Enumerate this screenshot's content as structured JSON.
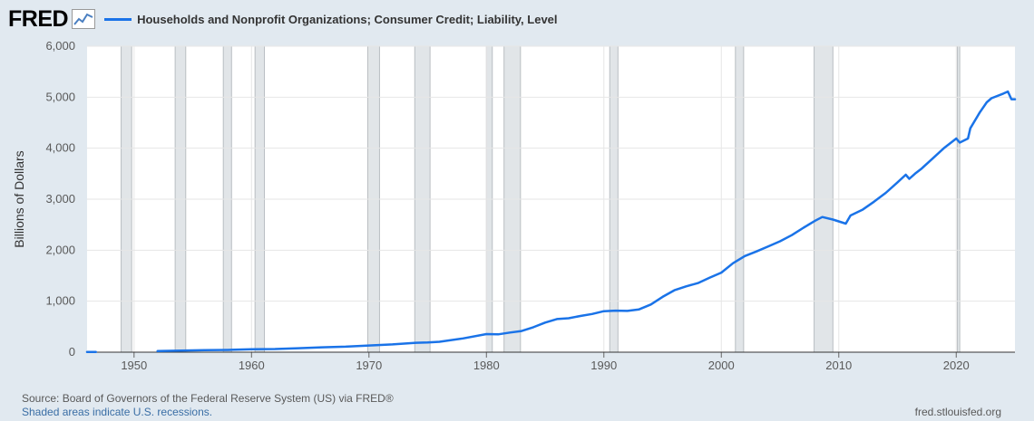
{
  "header": {
    "logo_text": "FRED",
    "logo_icon": "line-chart-icon"
  },
  "colors": {
    "background": "#e1e9f0",
    "plot_background": "#ffffff",
    "series_line": "#1a73e8",
    "recession_shade": "#e1e5e8"
  },
  "footer": {
    "source": "Source: Board of Governors of the Federal Reserve System (US) via FRED®",
    "recession_note": "Shaded areas indicate U.S. recessions.",
    "site": "fred.stlouisfed.org"
  },
  "chart_data": {
    "type": "line",
    "title": "",
    "xlabel": "",
    "ylabel": "Billions of Dollars",
    "xlim": [
      1946,
      2025
    ],
    "ylim": [
      0,
      6000
    ],
    "x_ticks": [
      1950,
      1960,
      1970,
      1980,
      1990,
      2000,
      2010,
      2020
    ],
    "x_tick_labels": [
      "1950",
      "1960",
      "1970",
      "1980",
      "1990",
      "2000",
      "2010",
      "2020"
    ],
    "y_ticks": [
      0,
      1000,
      2000,
      3000,
      4000,
      5000,
      6000
    ],
    "y_tick_labels": [
      "0",
      "1,000",
      "2,000",
      "3,000",
      "4,000",
      "5,000",
      "6,000"
    ],
    "grid": true,
    "legend": "top-left",
    "recessions": [
      [
        1948.9,
        1949.8
      ],
      [
        1953.5,
        1954.4
      ],
      [
        1957.6,
        1958.3
      ],
      [
        1960.3,
        1961.1
      ],
      [
        1969.9,
        1970.9
      ],
      [
        1973.9,
        1975.2
      ],
      [
        1980.0,
        1980.5
      ],
      [
        1981.5,
        1982.9
      ],
      [
        1990.5,
        1991.2
      ],
      [
        2001.2,
        2001.9
      ],
      [
        2007.9,
        2009.5
      ],
      [
        2020.1,
        2020.3
      ]
    ],
    "series": [
      {
        "name": "Households and Nonprofit Organizations; Consumer Credit; Liability, Level",
        "segments": [
          [
            [
              1946,
              6
            ],
            [
              1946.75,
              6
            ]
          ],
          [
            [
              1952,
              22
            ],
            [
              1954,
              31
            ],
            [
              1956,
              40
            ],
            [
              1958,
              45
            ],
            [
              1960,
              56
            ],
            [
              1962,
              62
            ],
            [
              1964,
              78
            ],
            [
              1966,
              96
            ],
            [
              1968,
              108
            ],
            [
              1970,
              132
            ],
            [
              1972,
              152
            ],
            [
              1974,
              185
            ],
            [
              1975,
              190
            ],
            [
              1976,
              205
            ],
            [
              1978,
              270
            ],
            [
              1980,
              355
            ],
            [
              1981,
              350
            ],
            [
              1982,
              385
            ],
            [
              1983,
              415
            ],
            [
              1984,
              490
            ],
            [
              1985,
              580
            ],
            [
              1986,
              650
            ],
            [
              1987,
              665
            ],
            [
              1988,
              710
            ],
            [
              1989,
              750
            ],
            [
              1990,
              805
            ],
            [
              1991,
              815
            ],
            [
              1992,
              810
            ],
            [
              1993,
              840
            ],
            [
              1994,
              935
            ],
            [
              1995,
              1085
            ],
            [
              1996,
              1215
            ],
            [
              1997,
              1290
            ],
            [
              1998,
              1355
            ],
            [
              1999,
              1460
            ],
            [
              2000,
              1560
            ],
            [
              2001,
              1745
            ],
            [
              2002,
              1885
            ],
            [
              2003,
              1975
            ],
            [
              2004,
              2075
            ],
            [
              2005,
              2175
            ],
            [
              2006,
              2295
            ],
            [
              2007,
              2440
            ],
            [
              2008,
              2580
            ],
            [
              2008.6,
              2650
            ],
            [
              2009.5,
              2600
            ],
            [
              2010.6,
              2520
            ],
            [
              2011,
              2680
            ],
            [
              2012,
              2790
            ],
            [
              2013,
              2950
            ],
            [
              2014,
              3125
            ],
            [
              2015,
              3330
            ],
            [
              2015.7,
              3480
            ],
            [
              2016,
              3400
            ],
            [
              2016.5,
              3500
            ],
            [
              2017,
              3590
            ],
            [
              2018,
              3800
            ],
            [
              2019,
              4010
            ],
            [
              2020,
              4190
            ],
            [
              2020.3,
              4110
            ],
            [
              2021,
              4190
            ],
            [
              2021.2,
              4390
            ],
            [
              2022,
              4700
            ],
            [
              2022.6,
              4900
            ],
            [
              2023,
              4980
            ],
            [
              2024,
              5070
            ],
            [
              2024.4,
              5110
            ],
            [
              2024.7,
              4960
            ],
            [
              2025,
              4960
            ]
          ]
        ]
      }
    ]
  }
}
